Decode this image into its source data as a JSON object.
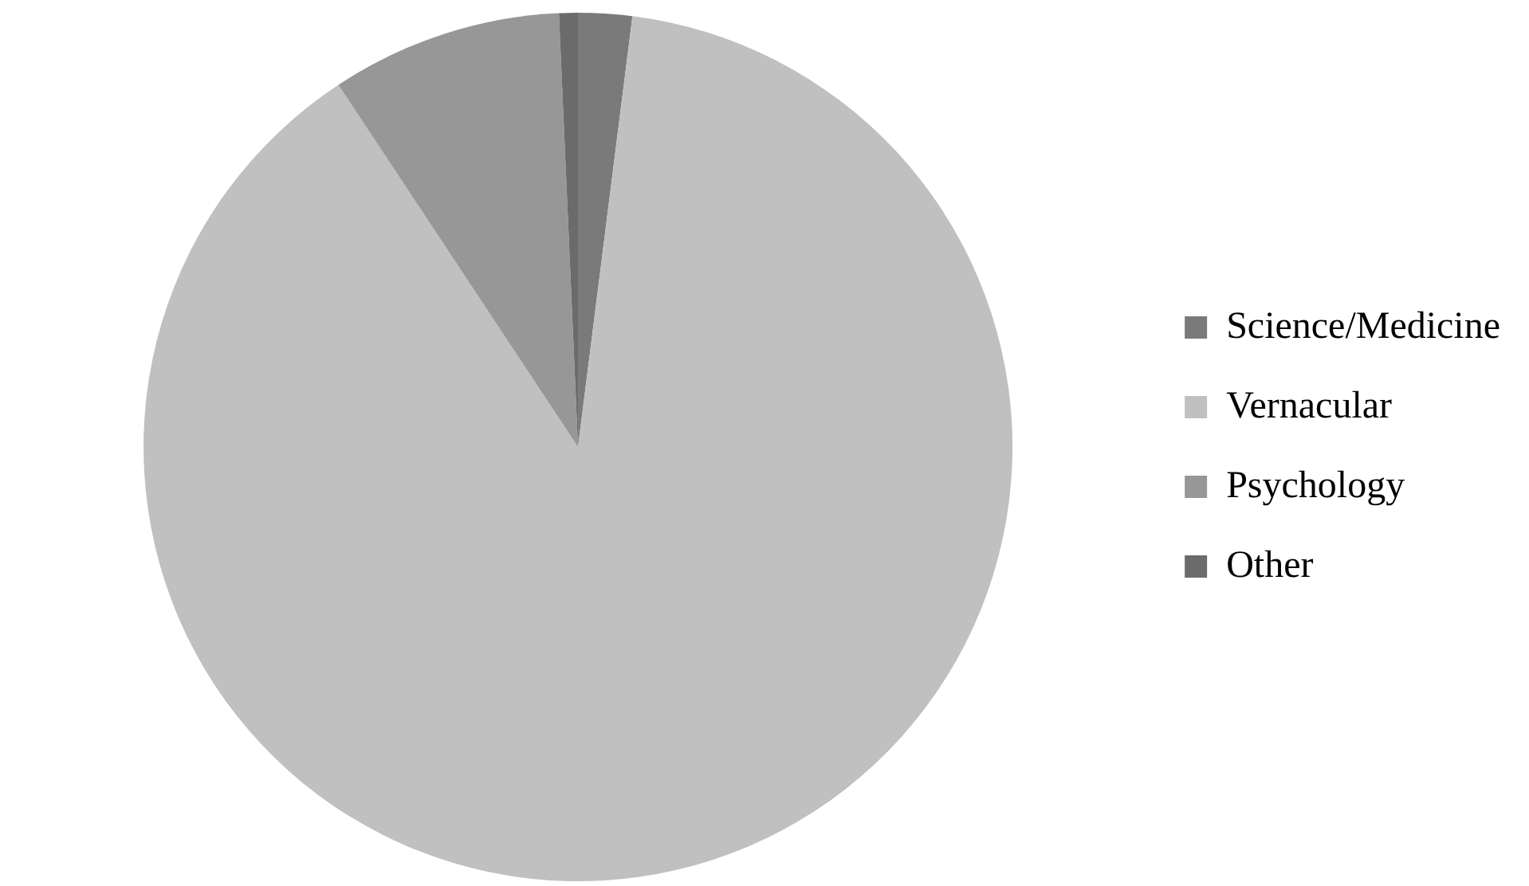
{
  "chart_data": {
    "type": "pie",
    "categories": [
      "Science/Medicine",
      "Vernacular",
      "Psychology",
      "Other"
    ],
    "values": [
      2,
      88.7,
      8.6,
      0.7
    ],
    "colors": [
      "#7a7a7a",
      "#c0c0c0",
      "#979797",
      "#6b6b6b"
    ],
    "legend": "right"
  }
}
